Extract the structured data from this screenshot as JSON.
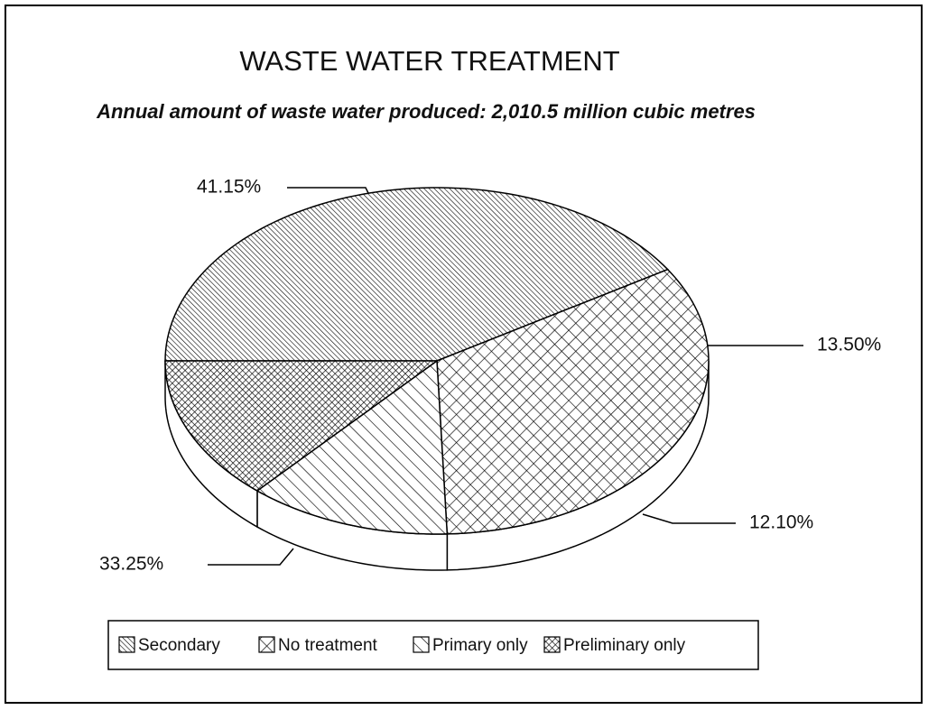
{
  "chart_data": {
    "type": "pie",
    "title": "WASTE WATER TREATMENT",
    "subtitle": "Annual amount of waste water produced: 2,010.5 million cubic metres",
    "categories": [
      "Secondary",
      "No treatment",
      "Primary only",
      "Preliminary only"
    ],
    "values": [
      41.15,
      33.25,
      12.1,
      13.5
    ],
    "value_labels": [
      "41.15%",
      "33.25%",
      "12.10%",
      "13.50%"
    ]
  }
}
